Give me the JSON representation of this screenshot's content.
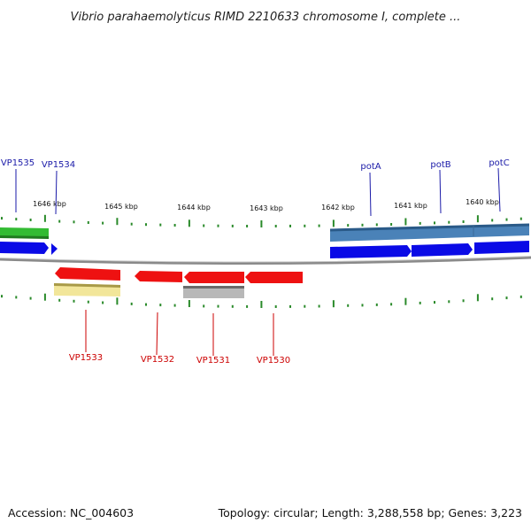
{
  "title": "Vibrio parahaemolyticus RIMD 2210633 chromosome I, complete ...",
  "footer": {
    "accession": "Accession: NC_004603",
    "summary": "Topology: circular; Length: 3,288,558 bp; Genes: 3,223"
  },
  "colors": {
    "forward_label": "#1a1aa8",
    "reverse_label": "#cc0000",
    "tick": "#2a8a2a",
    "backbone": "#8a8a8a",
    "cds_forward": "#0a0ae6",
    "cds_reverse": "#ee1111",
    "gene_green": "#33bb33",
    "gene_steelblue": "#4a82b8",
    "gene_yellow": "#f2e69a",
    "gene_gray": "#a8a8a8"
  },
  "kbp_labels": [
    "1646 kbp",
    "1645 kbp",
    "1644 kbp",
    "1643 kbp",
    "1642 kbp",
    "1641 kbp",
    "1640 kbp"
  ],
  "top_labels": [
    "VP1535",
    "VP1534",
    "potA",
    "potB",
    "potC"
  ],
  "bottom_labels": [
    "VP1533",
    "VP1532",
    "VP1531",
    "VP1530"
  ]
}
